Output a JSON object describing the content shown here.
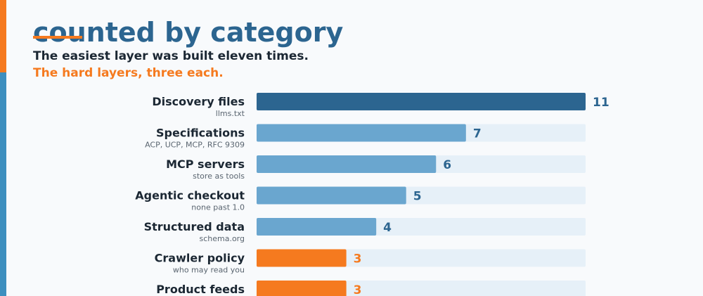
{
  "header": {
    "title_lines": [
      "",
      "counted by category"
    ],
    "subtitle_line1": "The easiest layer was built eleven times.",
    "subtitle_line2": "The hard layers, three each."
  },
  "colors": {
    "title": "#2c6590",
    "accent_orange": "#f57a1f",
    "bar_top": "#2c6590",
    "bar_mid": "#6aa6cf",
    "bar_hard": "#f57a1f",
    "track": "#e6f0f8"
  },
  "chart_data": {
    "type": "bar",
    "orientation": "horizontal",
    "xlim": [
      0,
      11
    ],
    "categories": [
      "Discovery files",
      "Specifications",
      "MCP servers",
      "Agentic checkout",
      "Structured data",
      "Crawler policy",
      "Product feeds"
    ],
    "sublabels": [
      "llms.txt",
      "ACP, UCP, MCP, RFC 9309",
      "store as tools",
      "none past 1.0",
      "schema.org",
      "who may read you",
      ""
    ],
    "values": [
      11,
      7,
      6,
      5,
      4,
      3,
      3
    ],
    "bar_colors": [
      "#2c6590",
      "#6aa6cf",
      "#6aa6cf",
      "#6aa6cf",
      "#6aa6cf",
      "#f57a1f",
      "#f57a1f"
    ],
    "value_colors": [
      "#2c6590",
      "#2c6590",
      "#2c6590",
      "#2c6590",
      "#2c6590",
      "#f57a1f",
      "#f57a1f"
    ]
  }
}
